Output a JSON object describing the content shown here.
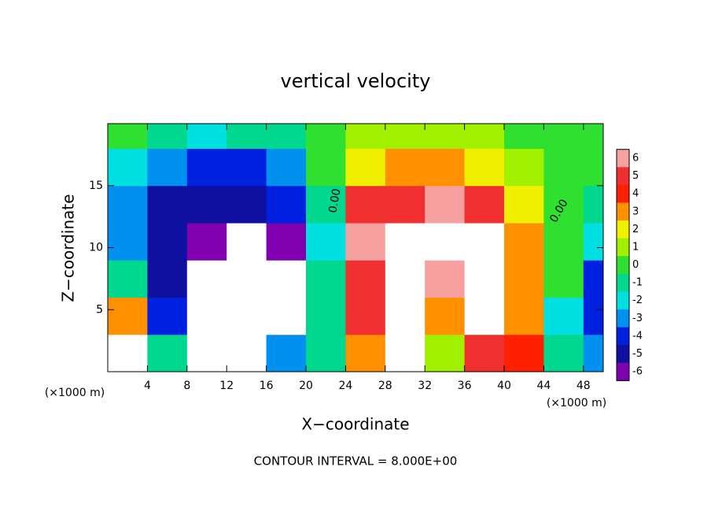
{
  "chart_data": {
    "type": "heatmap",
    "title": "vertical velocity",
    "x_label": "X−coordinate",
    "y_label": "Z−coordinate",
    "x_unit": "(×1000 m)",
    "x_unit_right": "(×1000 m)",
    "footer": "CONTOUR INTERVAL = 8.000E+00",
    "contour_labels": [
      "0.00",
      "0.00"
    ],
    "xlim": [
      0,
      50
    ],
    "ylim": [
      0,
      20
    ],
    "xticks": [
      4,
      8,
      12,
      16,
      20,
      24,
      28,
      32,
      36,
      40,
      44,
      48
    ],
    "yticks": [
      5,
      10,
      15
    ],
    "x": [
      2,
      6,
      10,
      14,
      18,
      22,
      26,
      30,
      34,
      38,
      42,
      46,
      50
    ],
    "z": [
      1.5,
      4.5,
      7.5,
      10.5,
      13.5,
      16.5,
      19.5
    ],
    "values": [
      [
        7,
        -1,
        -8,
        -7,
        -3,
        -1,
        3,
        8,
        1,
        5,
        4,
        -1,
        -3
      ],
      [
        3,
        -4,
        -8,
        -8,
        -8,
        -1,
        5,
        10,
        3,
        8,
        3,
        -2,
        -4
      ],
      [
        -1,
        -5,
        -9,
        -8,
        -9,
        -1,
        5,
        10,
        6,
        9,
        3,
        0,
        -4
      ],
      [
        -3,
        -5,
        -6,
        -8,
        -6,
        -2,
        6,
        9,
        7,
        8,
        3,
        0,
        -2
      ],
      [
        -3,
        -5,
        -5,
        -5,
        -4,
        -1,
        5,
        5,
        6,
        5,
        2,
        0,
        -1
      ],
      [
        -2,
        -3,
        -4,
        -4,
        -3,
        0,
        2,
        3,
        3,
        2,
        1,
        0,
        0
      ],
      [
        0,
        -1,
        -2,
        -1,
        -1,
        0,
        1,
        1,
        1,
        1,
        0,
        0,
        0
      ]
    ],
    "colorbar": {
      "ticks": [
        6,
        5,
        4,
        3,
        2,
        1,
        0,
        -1,
        -2,
        -3,
        -4,
        -5,
        -6
      ],
      "colors": [
        "#f6a0a0",
        "#f03030",
        "#ff2000",
        "#ff9000",
        "#f0f000",
        "#a0f000",
        "#30e030",
        "#00d890",
        "#00e0e0",
        "#0090f0",
        "#0020e0",
        "#1010a0",
        "#8000b0"
      ]
    },
    "extreme_color": "#ffffff"
  }
}
